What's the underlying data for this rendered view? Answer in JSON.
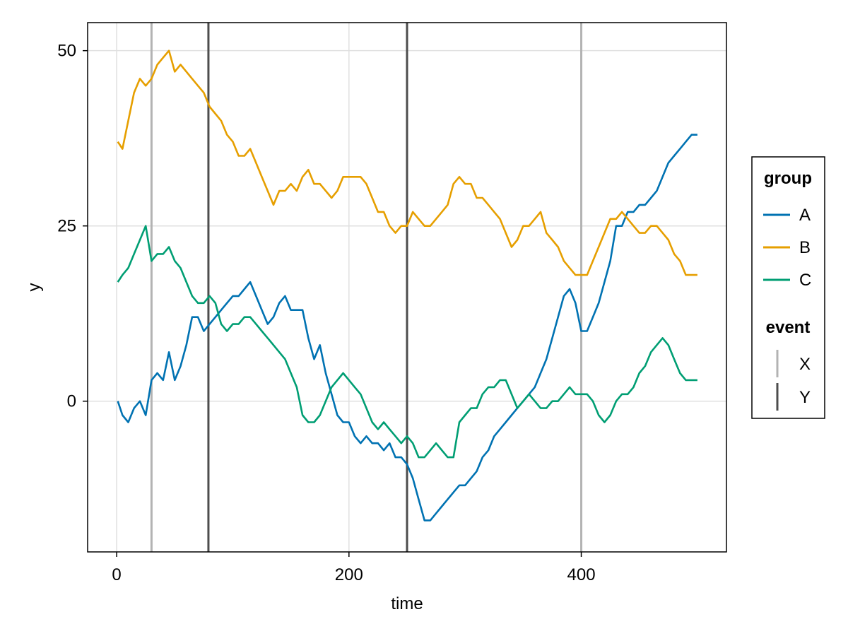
{
  "chart_data": {
    "type": "line",
    "title": "",
    "xlabel": "time",
    "ylabel": "y",
    "xlim": [
      -25,
      525
    ],
    "ylim": [
      -21.5,
      54
    ],
    "x_ticks": [
      0,
      200,
      400
    ],
    "y_ticks": [
      0,
      25,
      50
    ],
    "grid": true,
    "legend_position": "right",
    "colors": {
      "A": "#0072b2",
      "B": "#e69f00",
      "C": "#009e73",
      "X": "#b3b3b3",
      "Y": "#4d4d4d"
    },
    "series": [
      {
        "name": "A",
        "color": "#0072b2",
        "x": [
          1,
          5,
          10,
          15,
          20,
          25,
          30,
          35,
          40,
          45,
          50,
          55,
          60,
          65,
          70,
          75,
          80,
          85,
          90,
          95,
          100,
          105,
          110,
          115,
          120,
          125,
          130,
          135,
          140,
          145,
          150,
          155,
          160,
          165,
          170,
          175,
          180,
          185,
          190,
          195,
          200,
          205,
          210,
          215,
          220,
          225,
          230,
          235,
          240,
          245,
          250,
          255,
          260,
          265,
          270,
          275,
          280,
          285,
          290,
          295,
          300,
          305,
          310,
          315,
          320,
          325,
          330,
          335,
          340,
          345,
          350,
          355,
          360,
          365,
          370,
          375,
          380,
          385,
          390,
          395,
          400,
          405,
          410,
          415,
          420,
          425,
          430,
          435,
          440,
          445,
          450,
          455,
          460,
          465,
          470,
          475,
          480,
          485,
          490,
          495,
          500
        ],
        "y": [
          0,
          -2,
          -3,
          -1,
          0,
          -2,
          3,
          4,
          3,
          7,
          3,
          5,
          8,
          12,
          12,
          10,
          11,
          12,
          13,
          14,
          15,
          15,
          16,
          17,
          15,
          13,
          11,
          12,
          14,
          15,
          13,
          13,
          13,
          9,
          6,
          8,
          4,
          1,
          -2,
          -3,
          -3,
          -5,
          -6,
          -5,
          -6,
          -6,
          -7,
          -6,
          -8,
          -8,
          -9,
          -11,
          -14,
          -17,
          -17,
          -16,
          -15,
          -14,
          -13,
          -12,
          -12,
          -11,
          -10,
          -8,
          -7,
          -5,
          -4,
          -3,
          -2,
          -1,
          0,
          1,
          2,
          4,
          6,
          9,
          12,
          15,
          16,
          14,
          10,
          10,
          12,
          14,
          17,
          20,
          25,
          25,
          27,
          27,
          28,
          28,
          29,
          30,
          32,
          34,
          35,
          36,
          37,
          38,
          38
        ]
      },
      {
        "name": "B",
        "color": "#e69f00",
        "x": [
          1,
          5,
          10,
          15,
          20,
          25,
          30,
          35,
          40,
          45,
          50,
          55,
          60,
          65,
          70,
          75,
          80,
          85,
          90,
          95,
          100,
          105,
          110,
          115,
          120,
          125,
          130,
          135,
          140,
          145,
          150,
          155,
          160,
          165,
          170,
          175,
          180,
          185,
          190,
          195,
          200,
          205,
          210,
          215,
          220,
          225,
          230,
          235,
          240,
          245,
          250,
          255,
          260,
          265,
          270,
          275,
          280,
          285,
          290,
          295,
          300,
          305,
          310,
          315,
          320,
          325,
          330,
          335,
          340,
          345,
          350,
          355,
          360,
          365,
          370,
          375,
          380,
          385,
          390,
          395,
          400,
          405,
          410,
          415,
          420,
          425,
          430,
          435,
          440,
          445,
          450,
          455,
          460,
          465,
          470,
          475,
          480,
          485,
          490,
          495,
          500
        ],
        "y": [
          37,
          36,
          40,
          44,
          46,
          45,
          46,
          48,
          49,
          50,
          47,
          48,
          47,
          46,
          45,
          44,
          42,
          41,
          40,
          38,
          37,
          35,
          35,
          36,
          34,
          32,
          30,
          28,
          30,
          30,
          31,
          30,
          32,
          33,
          31,
          31,
          30,
          29,
          30,
          32,
          32,
          32,
          32,
          31,
          29,
          27,
          27,
          25,
          24,
          25,
          25,
          27,
          26,
          25,
          25,
          26,
          27,
          28,
          31,
          32,
          31,
          31,
          29,
          29,
          28,
          27,
          26,
          24,
          22,
          23,
          25,
          25,
          26,
          27,
          24,
          23,
          22,
          20,
          19,
          18,
          18,
          18,
          20,
          22,
          24,
          26,
          26,
          27,
          26,
          25,
          24,
          24,
          25,
          25,
          24,
          23,
          21,
          20,
          18,
          18,
          18
        ]
      },
      {
        "name": "C",
        "color": "#009e73",
        "x": [
          1,
          5,
          10,
          15,
          20,
          25,
          30,
          35,
          40,
          45,
          50,
          55,
          60,
          65,
          70,
          75,
          80,
          85,
          90,
          95,
          100,
          105,
          110,
          115,
          120,
          125,
          130,
          135,
          140,
          145,
          150,
          155,
          160,
          165,
          170,
          175,
          180,
          185,
          190,
          195,
          200,
          205,
          210,
          215,
          220,
          225,
          230,
          235,
          240,
          245,
          250,
          255,
          260,
          265,
          270,
          275,
          280,
          285,
          290,
          295,
          300,
          305,
          310,
          315,
          320,
          325,
          330,
          335,
          340,
          345,
          350,
          355,
          360,
          365,
          370,
          375,
          380,
          385,
          390,
          395,
          400,
          405,
          410,
          415,
          420,
          425,
          430,
          435,
          440,
          445,
          450,
          455,
          460,
          465,
          470,
          475,
          480,
          485,
          490,
          495,
          500
        ],
        "y": [
          17,
          18,
          19,
          21,
          23,
          25,
          20,
          21,
          21,
          22,
          20,
          19,
          17,
          15,
          14,
          14,
          15,
          14,
          11,
          10,
          11,
          11,
          12,
          12,
          11,
          10,
          9,
          8,
          7,
          6,
          4,
          2,
          -2,
          -3,
          -3,
          -2,
          0,
          2,
          3,
          4,
          3,
          2,
          1,
          -1,
          -3,
          -4,
          -3,
          -4,
          -5,
          -6,
          -5,
          -6,
          -8,
          -8,
          -7,
          -6,
          -7,
          -8,
          -8,
          -3,
          -2,
          -1,
          -1,
          1,
          2,
          2,
          3,
          3,
          1,
          -1,
          0,
          1,
          0,
          -1,
          -1,
          0,
          0,
          1,
          2,
          1,
          1,
          1,
          0,
          -2,
          -3,
          -2,
          0,
          1,
          1,
          2,
          4,
          5,
          7,
          8,
          9,
          8,
          6,
          4,
          3,
          3,
          3
        ]
      }
    ],
    "events": [
      {
        "name": "X",
        "color": "#b3b3b3",
        "times": [
          30,
          400
        ]
      },
      {
        "name": "Y",
        "color": "#4d4d4d",
        "times": [
          79,
          250
        ]
      }
    ],
    "legend": {
      "group_title": "group",
      "group_items": [
        "A",
        "B",
        "C"
      ],
      "event_title": "event",
      "event_items": [
        "X",
        "Y"
      ]
    }
  }
}
